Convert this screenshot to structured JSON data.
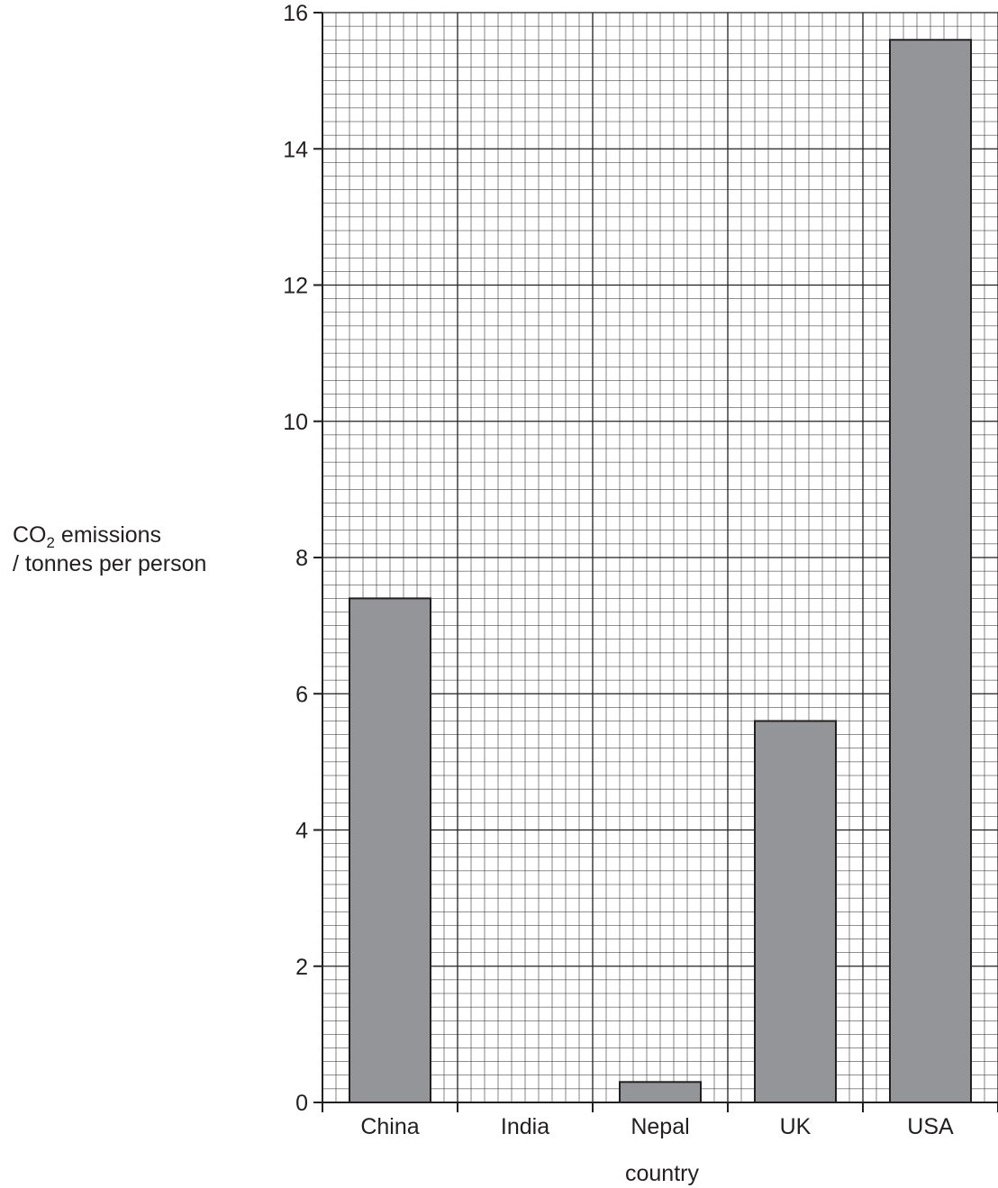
{
  "chart_data": {
    "type": "bar",
    "categories": [
      "China",
      "India",
      "Nepal",
      "UK",
      "USA"
    ],
    "values": [
      7.4,
      0,
      0.3,
      5.6,
      15.6
    ],
    "xlabel": "country",
    "ylabel": {
      "main": "CO",
      "subscript": "2",
      "rest": " emissions",
      "line2": "/ tonnes per person"
    },
    "ylim": [
      0,
      16
    ],
    "yticks": [
      0,
      2,
      4,
      6,
      8,
      10,
      12,
      14,
      16
    ],
    "grid": true,
    "bar_color": "#939598",
    "grid_color": "#231f20"
  }
}
